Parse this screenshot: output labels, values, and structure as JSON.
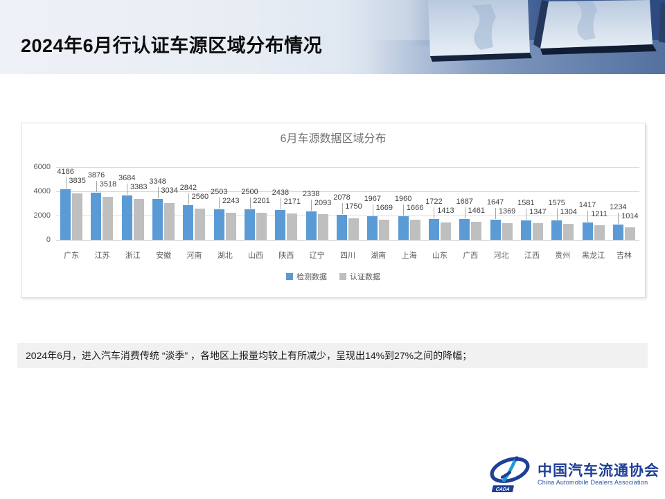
{
  "slide": {
    "title": "2024年6月行认证车源区域分布情况",
    "note": "2024年6月，进入汽车消费传统 “淡季” ，各地区上报量均较上有所减少，呈现出14%到27%之间的降幅；"
  },
  "chart_data": {
    "type": "bar",
    "title": "6月车源数据区域分布",
    "categories": [
      "广东",
      "江苏",
      "浙江",
      "安徽",
      "河南",
      "湖北",
      "山西",
      "陕西",
      "辽宁",
      "四川",
      "湖南",
      "上海",
      "山东",
      "广西",
      "河北",
      "江西",
      "贵州",
      "黑龙江",
      "吉林"
    ],
    "series": [
      {
        "name": "检测数据",
        "color": "#5B9BD5",
        "values": [
          4186,
          3876,
          3684,
          3348,
          2842,
          2503,
          2500,
          2438,
          2338,
          2078,
          1967,
          1960,
          1722,
          1687,
          1647,
          1581,
          1575,
          1417,
          1234
        ]
      },
      {
        "name": "认证数据",
        "color": "#BFBFBF",
        "values": [
          3835,
          3518,
          3383,
          3034,
          2560,
          2243,
          2201,
          2171,
          2093,
          1750,
          1669,
          1666,
          1413,
          1461,
          1369,
          1347,
          1304,
          1211,
          1014
        ]
      }
    ],
    "xlabel": "",
    "ylabel": "",
    "ylim": [
      0,
      6000
    ],
    "yticks": [
      0,
      2000,
      4000,
      6000
    ],
    "grid": true,
    "legend_position": "bottom",
    "data_labels": true
  },
  "footer_logo": {
    "org_cn": "中国汽车流通协会",
    "org_en": "China Automobile Dealers Association",
    "acronym": "CADA",
    "brand_color": "#1F3F97"
  }
}
